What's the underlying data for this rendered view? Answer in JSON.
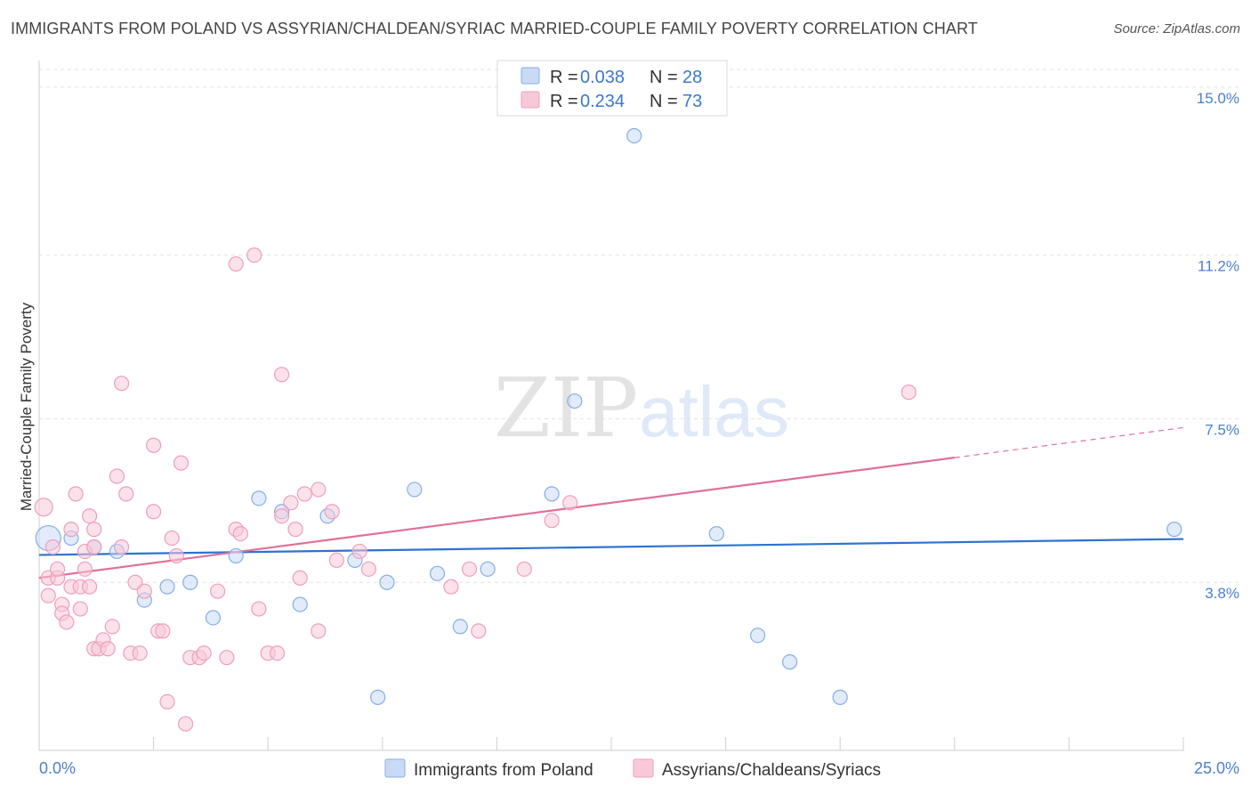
{
  "title": "IMMIGRANTS FROM POLAND VS ASSYRIAN/CHALDEAN/SYRIAC MARRIED-COUPLE FAMILY POVERTY CORRELATION CHART",
  "source": "Source: ZipAtlas.com",
  "watermark": {
    "zip": "ZIP",
    "atlas": "atlas"
  },
  "colors": {
    "poland_fill": "#c9daf5",
    "poland_stroke": "#86aee6",
    "poland_line": "#2e72d2",
    "assyrian_fill": "#f8c8d8",
    "assyrian_stroke": "#ee9fbb",
    "assyrian_line": "#e0709a",
    "tick_label": "#4a7fcf"
  },
  "legend": {
    "items": [
      {
        "r_label": "R = ",
        "r_value": "0.038",
        "n_label": "N = ",
        "n_value": "28"
      },
      {
        "r_label": "R = ",
        "r_value": "0.234",
        "n_label": "N = ",
        "n_value": "73"
      }
    ]
  },
  "chart_data": {
    "type": "scatter",
    "title": "IMMIGRANTS FROM POLAND VS ASSYRIAN/CHALDEAN/SYRIAC MARRIED-COUPLE FAMILY POVERTY CORRELATION CHART",
    "xlabel": "",
    "ylabel": "Married-Couple Family Poverty",
    "xlim": [
      0,
      25
    ],
    "ylim": [
      0,
      15.4
    ],
    "x_tick_labels": [
      "0.0%",
      "25.0%"
    ],
    "y_ticks": [
      3.8,
      7.5,
      11.2,
      15.0
    ],
    "y_tick_labels": [
      "3.8%",
      "7.5%",
      "11.2%",
      "15.0%"
    ],
    "grid": true,
    "legend_position": "top-center",
    "series": [
      {
        "name": "Immigrants from Poland",
        "trend": {
          "x": [
            0,
            25
          ],
          "y": [
            4.42,
            4.78
          ],
          "dashed_from": null
        },
        "points": [
          [
            0.2,
            4.8,
            14
          ],
          [
            0.7,
            4.8,
            8
          ],
          [
            1.2,
            4.6,
            8
          ],
          [
            1.7,
            4.5,
            8
          ],
          [
            2.3,
            3.4,
            8
          ],
          [
            2.8,
            3.7,
            8
          ],
          [
            3.3,
            3.8,
            8
          ],
          [
            3.8,
            3.0,
            8
          ],
          [
            4.3,
            4.4,
            8
          ],
          [
            4.8,
            5.7,
            8
          ],
          [
            5.3,
            5.4,
            8
          ],
          [
            5.7,
            3.3,
            8
          ],
          [
            6.3,
            5.3,
            8
          ],
          [
            6.9,
            4.3,
            8
          ],
          [
            7.6,
            3.8,
            8
          ],
          [
            7.4,
            1.2,
            8
          ],
          [
            8.2,
            5.9,
            8
          ],
          [
            8.7,
            4.0,
            8
          ],
          [
            9.2,
            2.8,
            8
          ],
          [
            9.8,
            4.1,
            8
          ],
          [
            11.2,
            5.8,
            8
          ],
          [
            11.7,
            7.9,
            8
          ],
          [
            13.0,
            13.9,
            8
          ],
          [
            14.8,
            4.9,
            8
          ],
          [
            15.7,
            2.6,
            8
          ],
          [
            16.4,
            2.0,
            8
          ],
          [
            17.5,
            1.2,
            8
          ],
          [
            24.8,
            5.0,
            8
          ]
        ]
      },
      {
        "name": "Assyrians/Chaldeans/Syriacs",
        "trend": {
          "x": [
            0,
            25
          ],
          "y": [
            3.9,
            7.3
          ],
          "dashed_from": 20
        },
        "points": [
          [
            0.1,
            5.5,
            10
          ],
          [
            0.3,
            4.6,
            8
          ],
          [
            0.2,
            3.9,
            8
          ],
          [
            0.2,
            3.5,
            8
          ],
          [
            0.4,
            3.9,
            8
          ],
          [
            0.4,
            4.1,
            8
          ],
          [
            0.5,
            3.3,
            8
          ],
          [
            0.5,
            3.1,
            8
          ],
          [
            0.6,
            2.9,
            8
          ],
          [
            0.7,
            3.7,
            8
          ],
          [
            0.7,
            5.0,
            8
          ],
          [
            0.8,
            5.8,
            8
          ],
          [
            0.9,
            3.2,
            8
          ],
          [
            0.9,
            3.7,
            8
          ],
          [
            1.0,
            4.1,
            8
          ],
          [
            1.0,
            4.5,
            8
          ],
          [
            1.1,
            3.7,
            8
          ],
          [
            1.1,
            5.3,
            8
          ],
          [
            1.2,
            4.6,
            8
          ],
          [
            1.2,
            5.0,
            8
          ],
          [
            1.2,
            2.3,
            8
          ],
          [
            1.3,
            2.3,
            8
          ],
          [
            1.4,
            2.5,
            8
          ],
          [
            1.5,
            2.3,
            8
          ],
          [
            1.6,
            2.8,
            8
          ],
          [
            1.7,
            6.2,
            8
          ],
          [
            1.8,
            4.6,
            8
          ],
          [
            1.8,
            8.3,
            8
          ],
          [
            1.9,
            5.8,
            8
          ],
          [
            2.0,
            2.2,
            8
          ],
          [
            2.1,
            3.8,
            8
          ],
          [
            2.2,
            2.2,
            8
          ],
          [
            2.3,
            3.6,
            8
          ],
          [
            2.5,
            6.9,
            8
          ],
          [
            2.5,
            5.4,
            8
          ],
          [
            2.6,
            2.7,
            8
          ],
          [
            2.7,
            2.7,
            8
          ],
          [
            2.8,
            1.1,
            8
          ],
          [
            2.9,
            4.8,
            8
          ],
          [
            3.0,
            4.4,
            8
          ],
          [
            3.1,
            6.5,
            8
          ],
          [
            3.2,
            0.6,
            8
          ],
          [
            3.3,
            2.1,
            8
          ],
          [
            3.5,
            2.1,
            8
          ],
          [
            3.6,
            2.2,
            8
          ],
          [
            3.9,
            3.6,
            8
          ],
          [
            4.1,
            2.1,
            8
          ],
          [
            4.3,
            11.0,
            8
          ],
          [
            4.3,
            5.0,
            8
          ],
          [
            4.4,
            4.9,
            8
          ],
          [
            4.7,
            11.2,
            8
          ],
          [
            4.8,
            3.2,
            8
          ],
          [
            5.0,
            2.2,
            8
          ],
          [
            5.2,
            2.2,
            8
          ],
          [
            5.3,
            5.3,
            8
          ],
          [
            5.3,
            8.5,
            8
          ],
          [
            5.5,
            5.6,
            8
          ],
          [
            5.6,
            5.0,
            8
          ],
          [
            5.7,
            3.9,
            8
          ],
          [
            5.8,
            5.8,
            8
          ],
          [
            6.1,
            2.7,
            8
          ],
          [
            6.1,
            5.9,
            8
          ],
          [
            6.4,
            5.4,
            8
          ],
          [
            6.5,
            4.3,
            8
          ],
          [
            7.0,
            4.5,
            8
          ],
          [
            7.2,
            4.1,
            8
          ],
          [
            9.0,
            3.7,
            8
          ],
          [
            9.4,
            4.1,
            8
          ],
          [
            9.6,
            2.7,
            8
          ],
          [
            10.6,
            4.1,
            8
          ],
          [
            11.2,
            5.2,
            8
          ],
          [
            11.6,
            5.6,
            8
          ],
          [
            19.0,
            8.1,
            8
          ]
        ]
      }
    ]
  },
  "bottom_legend": {
    "items": [
      {
        "label": "Immigrants from Poland"
      },
      {
        "label": "Assyrians/Chaldeans/Syriacs"
      }
    ]
  }
}
